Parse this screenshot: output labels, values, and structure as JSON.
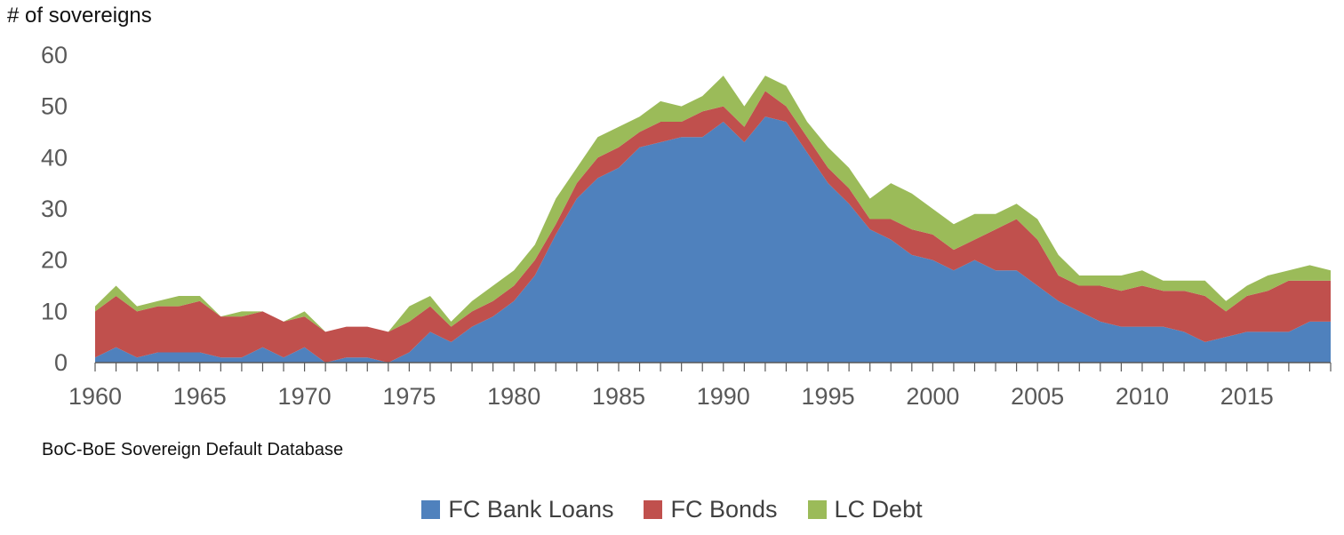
{
  "y_axis_title": "# of sovereigns",
  "source_note": "BoC-BoE Sovereign Default Database",
  "chart_data": {
    "type": "area",
    "stacked": true,
    "ylabel": "# of sovereigns",
    "ylim": [
      0,
      60
    ],
    "yticks": [
      0,
      10,
      20,
      30,
      40,
      50,
      60
    ],
    "xlim": [
      1960,
      2019
    ],
    "xticks": [
      1960,
      1965,
      1970,
      1975,
      1980,
      1985,
      1990,
      1995,
      2000,
      2005,
      2010,
      2015
    ],
    "grid": false,
    "legend_position": "bottom",
    "x": [
      1960,
      1961,
      1962,
      1963,
      1964,
      1965,
      1966,
      1967,
      1968,
      1969,
      1970,
      1971,
      1972,
      1973,
      1974,
      1975,
      1976,
      1977,
      1978,
      1979,
      1980,
      1981,
      1982,
      1983,
      1984,
      1985,
      1986,
      1987,
      1988,
      1989,
      1990,
      1991,
      1992,
      1993,
      1994,
      1995,
      1996,
      1997,
      1998,
      1999,
      2000,
      2001,
      2002,
      2003,
      2004,
      2005,
      2006,
      2007,
      2008,
      2009,
      2010,
      2011,
      2012,
      2013,
      2014,
      2015,
      2016,
      2017,
      2018,
      2019
    ],
    "series": [
      {
        "name": "FC Bank Loans",
        "color": "#4f81bd",
        "values": [
          1,
          3,
          1,
          2,
          2,
          2,
          1,
          1,
          3,
          1,
          3,
          0,
          1,
          1,
          0,
          2,
          6,
          4,
          7,
          9,
          12,
          17,
          25,
          32,
          36,
          38,
          42,
          43,
          44,
          44,
          47,
          43,
          48,
          47,
          41,
          35,
          31,
          26,
          24,
          21,
          20,
          18,
          20,
          18,
          18,
          15,
          12,
          10,
          8,
          7,
          7,
          7,
          6,
          4,
          5,
          6,
          6,
          6,
          8,
          8
        ]
      },
      {
        "name": "FC Bonds",
        "color": "#c0504d",
        "values": [
          9,
          10,
          9,
          9,
          9,
          10,
          8,
          8,
          7,
          7,
          6,
          6,
          6,
          6,
          6,
          6,
          5,
          3,
          3,
          3,
          3,
          3,
          2,
          3,
          4,
          4,
          3,
          4,
          3,
          5,
          3,
          3,
          5,
          3,
          3,
          3,
          3,
          2,
          4,
          5,
          5,
          4,
          4,
          8,
          10,
          9,
          5,
          5,
          7,
          7,
          8,
          7,
          8,
          9,
          5,
          7,
          8,
          10,
          8,
          8
        ]
      },
      {
        "name": "LC Debt",
        "color": "#9bbb59",
        "values": [
          1,
          2,
          1,
          1,
          2,
          1,
          0,
          1,
          0,
          0,
          1,
          0,
          0,
          0,
          0,
          3,
          2,
          1,
          2,
          3,
          3,
          3,
          5,
          3,
          4,
          4,
          3,
          4,
          3,
          3,
          6,
          4,
          3,
          4,
          3,
          4,
          4,
          4,
          7,
          7,
          5,
          5,
          5,
          3,
          3,
          4,
          4,
          2,
          2,
          3,
          3,
          2,
          2,
          3,
          2,
          2,
          3,
          2,
          3,
          2
        ]
      }
    ]
  }
}
